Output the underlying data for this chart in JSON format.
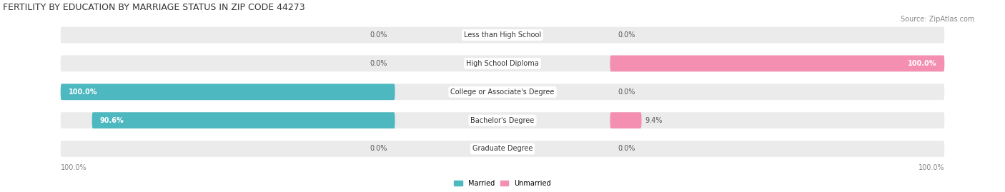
{
  "title": "FERTILITY BY EDUCATION BY MARRIAGE STATUS IN ZIP CODE 44273",
  "source": "Source: ZipAtlas.com",
  "categories": [
    "Less than High School",
    "High School Diploma",
    "College or Associate's Degree",
    "Bachelor's Degree",
    "Graduate Degree"
  ],
  "married": [
    0.0,
    0.0,
    100.0,
    90.6,
    0.0
  ],
  "unmarried": [
    0.0,
    100.0,
    0.0,
    9.4,
    0.0
  ],
  "married_color": "#4db8c0",
  "unmarried_color": "#f48fb1",
  "bar_bg_color": "#ebebeb",
  "row_bg_color": "#f5f5f5",
  "bar_height": 0.55,
  "figsize": [
    14.06,
    2.69
  ],
  "dpi": 100,
  "title_fontsize": 9,
  "source_fontsize": 7,
  "label_fontsize": 7,
  "cat_fontsize": 7,
  "legend_fontsize": 7,
  "axis_label_bottom_left": "100.0%",
  "axis_label_bottom_right": "100.0%"
}
